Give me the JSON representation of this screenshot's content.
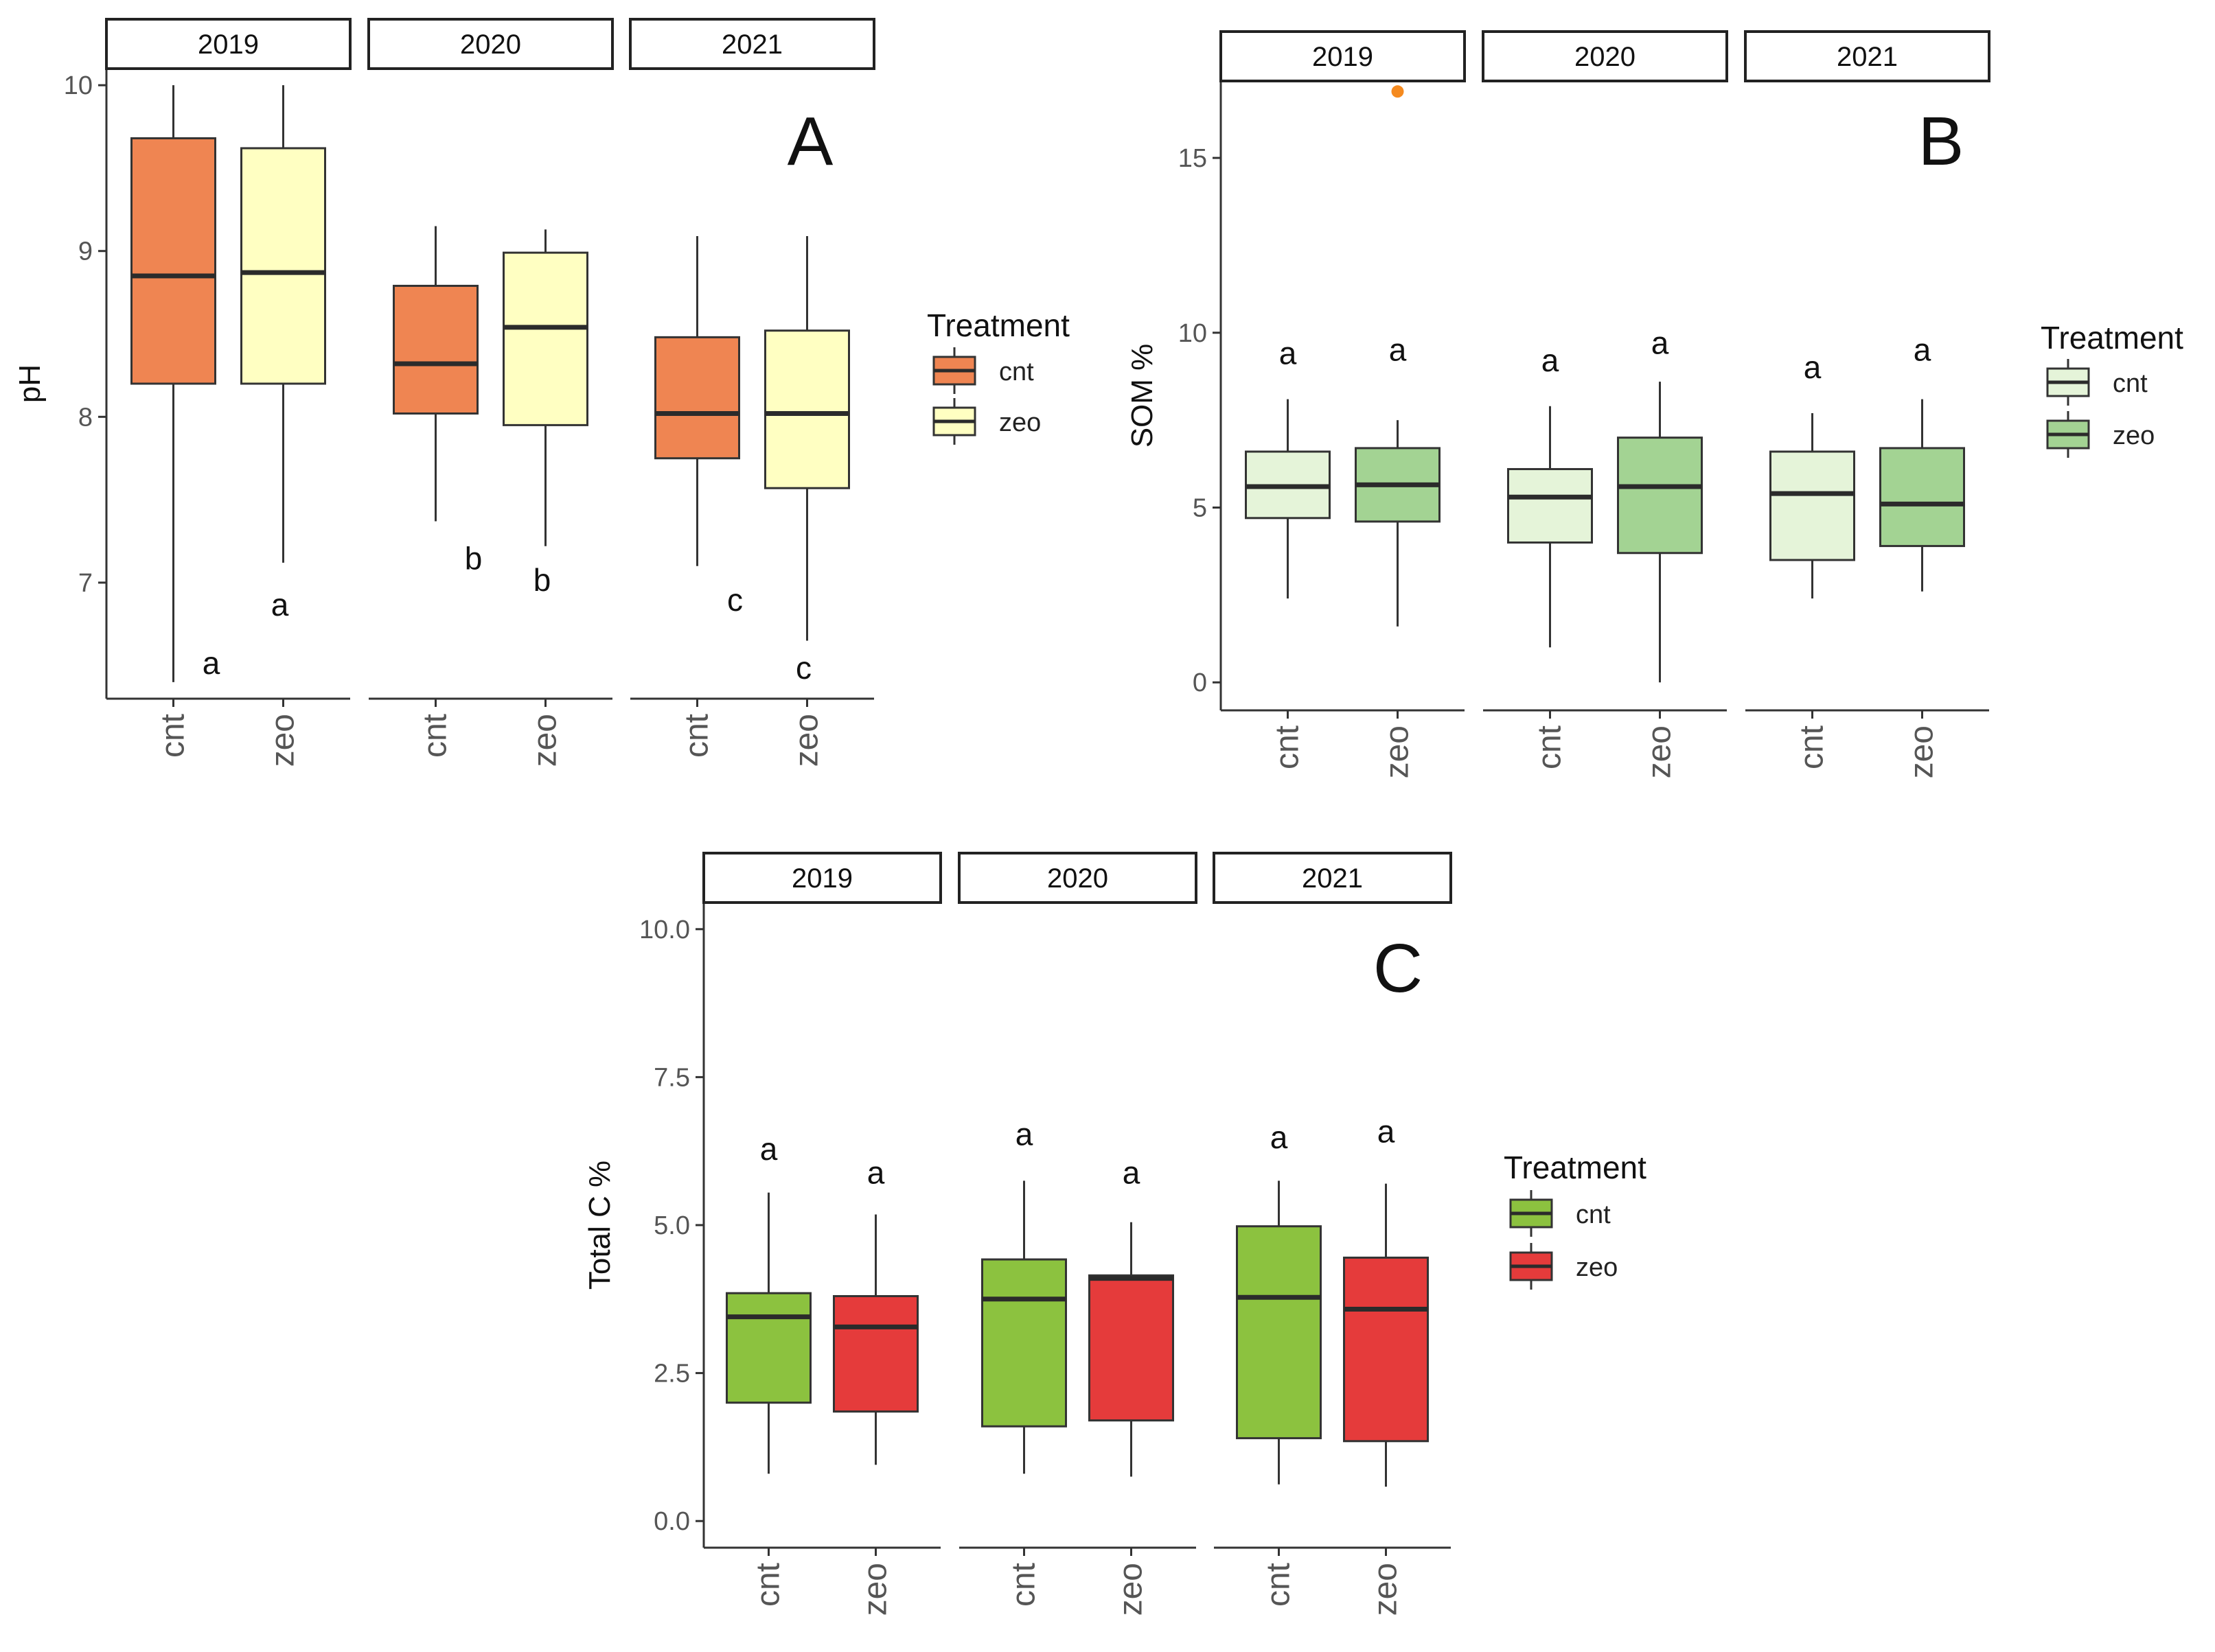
{
  "chart_data": [
    {
      "type": "boxplot",
      "panel_label": "A",
      "ylabel": "pH",
      "ylim": [
        6.3,
        10.1
      ],
      "yticks": [
        7,
        8,
        9,
        10
      ],
      "facets": [
        "2019",
        "2020",
        "2021"
      ],
      "categories": [
        "cnt",
        "zeo"
      ],
      "legend": {
        "title": "Treatment",
        "entries": [
          "cnt",
          "zeo"
        ],
        "position": "right"
      },
      "colors": {
        "cnt": "#ef8552",
        "zeo": "#ffffc2"
      },
      "boxes": [
        {
          "facet": "2019",
          "treatment": "cnt",
          "min": 6.4,
          "q1": 8.2,
          "median": 8.85,
          "q3": 9.68,
          "max": 10.0,
          "label": "a",
          "label_y": 6.45
        },
        {
          "facet": "2019",
          "treatment": "zeo",
          "min": 7.12,
          "q1": 8.2,
          "median": 8.87,
          "q3": 9.62,
          "max": 10.0,
          "label": "a",
          "label_y": 6.8
        },
        {
          "facet": "2020",
          "treatment": "cnt",
          "min": 7.37,
          "q1": 8.02,
          "median": 8.32,
          "q3": 8.79,
          "max": 9.15,
          "label": "b",
          "label_y": 7.08
        },
        {
          "facet": "2020",
          "treatment": "zeo",
          "min": 7.22,
          "q1": 7.95,
          "median": 8.54,
          "q3": 8.99,
          "max": 9.13,
          "label": "b",
          "label_y": 6.95
        },
        {
          "facet": "2021",
          "treatment": "cnt",
          "min": 7.1,
          "q1": 7.75,
          "median": 8.02,
          "q3": 8.48,
          "max": 9.09,
          "label": "c",
          "label_y": 6.83
        },
        {
          "facet": "2021",
          "treatment": "zeo",
          "min": 6.65,
          "q1": 7.57,
          "median": 8.02,
          "q3": 8.52,
          "max": 9.09,
          "label": "c",
          "label_y": 6.42
        }
      ],
      "outliers": []
    },
    {
      "type": "boxplot",
      "panel_label": "B",
      "ylabel": "SOM %",
      "ylim": [
        -0.8,
        17.2
      ],
      "yticks": [
        0,
        5,
        10,
        15
      ],
      "facets": [
        "2019",
        "2020",
        "2021"
      ],
      "categories": [
        "cnt",
        "zeo"
      ],
      "legend": {
        "title": "Treatment",
        "entries": [
          "cnt",
          "zeo"
        ],
        "position": "right"
      },
      "colors": {
        "cnt": "#e5f4d9",
        "zeo": "#a3d393"
      },
      "boxes": [
        {
          "facet": "2019",
          "treatment": "cnt",
          "min": 2.4,
          "q1": 4.7,
          "median": 5.6,
          "q3": 6.6,
          "max": 8.1,
          "label": "a",
          "label_y": 9.1
        },
        {
          "facet": "2019",
          "treatment": "zeo",
          "min": 1.6,
          "q1": 4.6,
          "median": 5.65,
          "q3": 6.7,
          "max": 7.5,
          "label": "a",
          "label_y": 9.2
        },
        {
          "facet": "2020",
          "treatment": "cnt",
          "min": 1.0,
          "q1": 4.0,
          "median": 5.3,
          "q3": 6.1,
          "max": 7.9,
          "label": "a",
          "label_y": 8.9
        },
        {
          "facet": "2020",
          "treatment": "zeo",
          "min": 0.0,
          "q1": 3.7,
          "median": 5.6,
          "q3": 7.0,
          "max": 8.6,
          "label": "a",
          "label_y": 9.4
        },
        {
          "facet": "2021",
          "treatment": "cnt",
          "min": 2.4,
          "q1": 3.5,
          "median": 5.4,
          "q3": 6.6,
          "max": 7.7,
          "label": "a",
          "label_y": 8.7
        },
        {
          "facet": "2021",
          "treatment": "zeo",
          "min": 2.6,
          "q1": 3.9,
          "median": 5.1,
          "q3": 6.7,
          "max": 8.1,
          "label": "a",
          "label_y": 9.2
        }
      ],
      "outliers": [
        {
          "facet": "2019",
          "treatment": "zeo",
          "value": 16.9,
          "color": "#f58a1f"
        }
      ]
    },
    {
      "type": "boxplot",
      "panel_label": "C",
      "ylabel": "Total C %",
      "ylim": [
        -0.45,
        10.45
      ],
      "yticks": [
        "0.0",
        "2.5",
        "5.0",
        "7.5",
        "10.0"
      ],
      "facets": [
        "2019",
        "2020",
        "2021"
      ],
      "categories": [
        "cnt",
        "zeo"
      ],
      "legend": {
        "title": "Treatment",
        "entries": [
          "cnt",
          "zeo"
        ],
        "position": "right"
      },
      "colors": {
        "cnt": "#8cc23f",
        "zeo": "#e53b3b"
      },
      "boxes": [
        {
          "facet": "2019",
          "treatment": "cnt",
          "min": 0.8,
          "q1": 2.0,
          "median": 3.45,
          "q3": 3.85,
          "max": 5.55,
          "label": "a",
          "label_y": 6.1
        },
        {
          "facet": "2019",
          "treatment": "zeo",
          "min": 0.95,
          "q1": 1.85,
          "median": 3.28,
          "q3": 3.8,
          "max": 5.18,
          "label": "a",
          "label_y": 5.7
        },
        {
          "facet": "2020",
          "treatment": "cnt",
          "min": 0.8,
          "q1": 1.6,
          "median": 3.75,
          "q3": 4.42,
          "max": 5.75,
          "label": "a",
          "label_y": 6.35
        },
        {
          "facet": "2020",
          "treatment": "zeo",
          "min": 0.75,
          "q1": 1.7,
          "median": 4.1,
          "q3": 4.15,
          "max": 5.05,
          "label": "a",
          "label_y": 5.7
        },
        {
          "facet": "2021",
          "treatment": "cnt",
          "min": 0.62,
          "q1": 1.4,
          "median": 3.78,
          "q3": 4.98,
          "max": 5.75,
          "label": "a",
          "label_y": 6.3
        },
        {
          "facet": "2021",
          "treatment": "zeo",
          "min": 0.58,
          "q1": 1.35,
          "median": 3.58,
          "q3": 4.45,
          "max": 5.7,
          "label": "a",
          "label_y": 6.4
        }
      ],
      "outliers": []
    }
  ]
}
